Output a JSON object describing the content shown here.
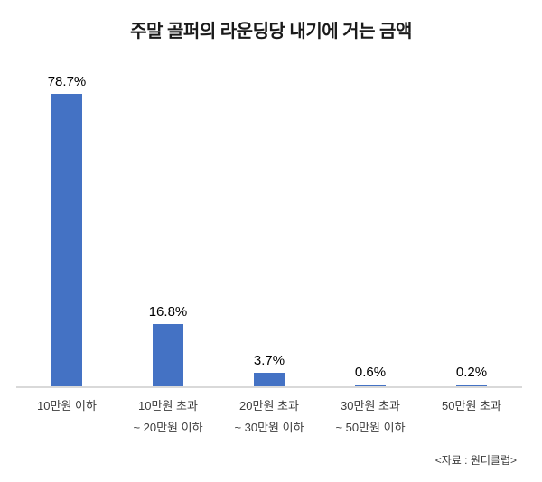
{
  "chart_data": {
    "type": "bar",
    "title": "주말 골퍼의 라운딩당 내기에 거는 금액",
    "categories": [
      [
        "10만원 이하"
      ],
      [
        "10만원 초과",
        "~ 20만원 이하"
      ],
      [
        "20만원 초과",
        "~ 30만원 이하"
      ],
      [
        "30만원 초과",
        "~ 50만원 이하"
      ],
      [
        "50만원 초과"
      ]
    ],
    "values": [
      78.7,
      16.8,
      3.7,
      0.6,
      0.2
    ],
    "value_labels": [
      "78.7%",
      "16.8%",
      "3.7%",
      "0.6%",
      "0.2%"
    ],
    "xlabel": "",
    "ylabel": "",
    "ylim": [
      0,
      85
    ],
    "grid": false,
    "legend": "none",
    "bar_color": "#4472C4",
    "axis_line_color": "#d9d9d9",
    "source": "<자료 : 원더클럽>"
  }
}
